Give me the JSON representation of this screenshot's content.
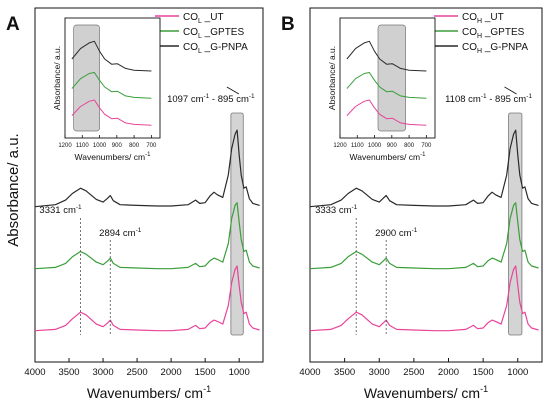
{
  "figure": {
    "ylabel_text": "Absorbance/ a.u."
  },
  "chart_data": [
    {
      "type": "line",
      "panel_label": "A",
      "xlabel": "Wavenumbers/ cm",
      "xlabel_sup": "-1",
      "ylabel": "Absorbance/ a.u.",
      "xlim": [
        4000,
        650
      ],
      "x_reversed": true,
      "y_ticks": "none",
      "xticks": [
        4000,
        3500,
        3000,
        2500,
        2000,
        1500,
        1000
      ],
      "xtick_labels": [
        "4000",
        "3500",
        "3000",
        "2500",
        "2000",
        "1500",
        "1000"
      ],
      "legend_position": "top-right",
      "series": [
        {
          "name_main": "CO",
          "name_sub": "L",
          "name_rest": " _UT",
          "color": "#e8449a",
          "offset": 0.0,
          "points": [
            [
              4000,
              0.02
            ],
            [
              3700,
              0.04
            ],
            [
              3550,
              0.1
            ],
            [
              3450,
              0.2
            ],
            [
              3331,
              0.3
            ],
            [
              3250,
              0.26
            ],
            [
              3100,
              0.12
            ],
            [
              3000,
              0.08
            ],
            [
              2930,
              0.14
            ],
            [
              2894,
              0.18
            ],
            [
              2850,
              0.1
            ],
            [
              2750,
              0.04
            ],
            [
              2500,
              0.03
            ],
            [
              2200,
              0.02
            ],
            [
              2000,
              0.02
            ],
            [
              1750,
              0.04
            ],
            [
              1640,
              0.1
            ],
            [
              1580,
              0.05
            ],
            [
              1500,
              0.06
            ],
            [
              1430,
              0.14
            ],
            [
              1370,
              0.18
            ],
            [
              1320,
              0.16
            ],
            [
              1240,
              0.12
            ],
            [
              1160,
              0.4
            ],
            [
              1110,
              0.75
            ],
            [
              1060,
              0.95
            ],
            [
              1030,
              1.0
            ],
            [
              1000,
              0.7
            ],
            [
              970,
              0.45
            ],
            [
              930,
              0.28
            ],
            [
              897,
              0.3
            ],
            [
              850,
              0.12
            ],
            [
              800,
              0.06
            ],
            [
              700,
              0.03
            ]
          ]
        },
        {
          "name_main": "CO",
          "name_sub": "L",
          "name_rest": " _GPTES",
          "color": "#3a9e3a",
          "offset": 0.32,
          "points": [
            [
              4000,
              0.02
            ],
            [
              3700,
              0.04
            ],
            [
              3550,
              0.1
            ],
            [
              3450,
              0.2
            ],
            [
              3331,
              0.28
            ],
            [
              3250,
              0.24
            ],
            [
              3100,
              0.12
            ],
            [
              3000,
              0.08
            ],
            [
              2930,
              0.14
            ],
            [
              2894,
              0.18
            ],
            [
              2850,
              0.1
            ],
            [
              2750,
              0.04
            ],
            [
              2500,
              0.03
            ],
            [
              2200,
              0.02
            ],
            [
              2000,
              0.02
            ],
            [
              1750,
              0.04
            ],
            [
              1640,
              0.1
            ],
            [
              1580,
              0.05
            ],
            [
              1500,
              0.06
            ],
            [
              1430,
              0.14
            ],
            [
              1370,
              0.18
            ],
            [
              1320,
              0.16
            ],
            [
              1240,
              0.12
            ],
            [
              1160,
              0.4
            ],
            [
              1110,
              0.78
            ],
            [
              1060,
              0.98
            ],
            [
              1030,
              1.02
            ],
            [
              1000,
              0.72
            ],
            [
              970,
              0.46
            ],
            [
              930,
              0.28
            ],
            [
              897,
              0.3
            ],
            [
              850,
              0.12
            ],
            [
              800,
              0.06
            ],
            [
              700,
              0.03
            ]
          ]
        },
        {
          "name_main": "CO",
          "name_sub": "L",
          "name_rest": " _G-PNPA",
          "color": "#2a2a2a",
          "offset": 0.66,
          "points": [
            [
              4000,
              0.02
            ],
            [
              3700,
              0.05
            ],
            [
              3550,
              0.12
            ],
            [
              3450,
              0.22
            ],
            [
              3331,
              0.3
            ],
            [
              3250,
              0.26
            ],
            [
              3100,
              0.13
            ],
            [
              3000,
              0.09
            ],
            [
              2930,
              0.15
            ],
            [
              2894,
              0.19
            ],
            [
              2850,
              0.11
            ],
            [
              2750,
              0.05
            ],
            [
              2500,
              0.04
            ],
            [
              2200,
              0.03
            ],
            [
              2000,
              0.03
            ],
            [
              1750,
              0.05
            ],
            [
              1640,
              0.12
            ],
            [
              1580,
              0.07
            ],
            [
              1500,
              0.08
            ],
            [
              1430,
              0.18
            ],
            [
              1370,
              0.24
            ],
            [
              1320,
              0.2
            ],
            [
              1240,
              0.16
            ],
            [
              1160,
              0.5
            ],
            [
              1110,
              0.9
            ],
            [
              1060,
              1.12
            ],
            [
              1030,
              1.18
            ],
            [
              1000,
              0.8
            ],
            [
              970,
              0.5
            ],
            [
              930,
              0.3
            ],
            [
              897,
              0.32
            ],
            [
              850,
              0.14
            ],
            [
              800,
              0.07
            ],
            [
              700,
              0.04
            ]
          ]
        }
      ],
      "annotations": [
        {
          "text": "3331 cm",
          "sup": "-1",
          "x": 3331
        },
        {
          "text": "2894 cm",
          "sup": "-1",
          "x": 2894
        },
        {
          "text": "1097 cm",
          "sup1": "-1",
          "text2": " - 895 cm",
          "sup2": "-1",
          "x_range": [
            1097,
            895
          ]
        }
      ],
      "inset": {
        "xlabel": "Wavenumbers/ cm",
        "xlabel_sup": "-1",
        "ylabel": "Absorbance/ a.u.",
        "xlim": [
          1200,
          650
        ],
        "xticks": [
          1200,
          1100,
          1000,
          900,
          800,
          700
        ],
        "xtick_labels": [
          "1200",
          "1100",
          "1000",
          "900",
          "800",
          "700"
        ],
        "highlight_range": [
          1150,
          1000
        ]
      }
    },
    {
      "type": "line",
      "panel_label": "B",
      "xlabel": "Wavenumbers/ cm",
      "xlabel_sup": "-1",
      "ylabel": "Absorbance/ a.u.",
      "xlim": [
        4000,
        650
      ],
      "x_reversed": true,
      "y_ticks": "none",
      "xticks": [
        4000,
        3500,
        3000,
        2500,
        2000,
        1500,
        1000
      ],
      "xtick_labels": [
        "4000",
        "3500",
        "3000",
        "2500",
        "2000",
        "1500",
        "1000"
      ],
      "legend_position": "top-right",
      "series": [
        {
          "name_main": "CO",
          "name_sub": "H",
          "name_rest": " _UT",
          "color": "#e8449a",
          "offset": 0.0,
          "points": [
            [
              4000,
              0.02
            ],
            [
              3700,
              0.04
            ],
            [
              3550,
              0.1
            ],
            [
              3450,
              0.2
            ],
            [
              3333,
              0.3
            ],
            [
              3250,
              0.26
            ],
            [
              3100,
              0.12
            ],
            [
              3000,
              0.08
            ],
            [
              2940,
              0.14
            ],
            [
              2900,
              0.18
            ],
            [
              2850,
              0.1
            ],
            [
              2750,
              0.04
            ],
            [
              2500,
              0.03
            ],
            [
              2200,
              0.02
            ],
            [
              2000,
              0.02
            ],
            [
              1750,
              0.04
            ],
            [
              1640,
              0.1
            ],
            [
              1580,
              0.05
            ],
            [
              1500,
              0.06
            ],
            [
              1430,
              0.14
            ],
            [
              1370,
              0.18
            ],
            [
              1320,
              0.16
            ],
            [
              1240,
              0.12
            ],
            [
              1160,
              0.4
            ],
            [
              1110,
              0.75
            ],
            [
              1060,
              0.95
            ],
            [
              1030,
              1.0
            ],
            [
              1000,
              0.7
            ],
            [
              970,
              0.45
            ],
            [
              930,
              0.28
            ],
            [
              897,
              0.3
            ],
            [
              850,
              0.12
            ],
            [
              800,
              0.06
            ],
            [
              700,
              0.03
            ]
          ]
        },
        {
          "name_main": "CO",
          "name_sub": "H",
          "name_rest": " _GPTES",
          "color": "#3a9e3a",
          "offset": 0.32,
          "points": [
            [
              4000,
              0.02
            ],
            [
              3700,
              0.04
            ],
            [
              3550,
              0.1
            ],
            [
              3450,
              0.2
            ],
            [
              3333,
              0.28
            ],
            [
              3250,
              0.24
            ],
            [
              3100,
              0.12
            ],
            [
              3000,
              0.08
            ],
            [
              2940,
              0.14
            ],
            [
              2900,
              0.18
            ],
            [
              2850,
              0.1
            ],
            [
              2750,
              0.04
            ],
            [
              2500,
              0.03
            ],
            [
              2200,
              0.02
            ],
            [
              2000,
              0.02
            ],
            [
              1750,
              0.04
            ],
            [
              1640,
              0.1
            ],
            [
              1580,
              0.05
            ],
            [
              1500,
              0.06
            ],
            [
              1430,
              0.14
            ],
            [
              1370,
              0.18
            ],
            [
              1320,
              0.16
            ],
            [
              1240,
              0.12
            ],
            [
              1160,
              0.4
            ],
            [
              1110,
              0.78
            ],
            [
              1060,
              0.98
            ],
            [
              1030,
              1.02
            ],
            [
              1000,
              0.72
            ],
            [
              970,
              0.46
            ],
            [
              930,
              0.28
            ],
            [
              897,
              0.3
            ],
            [
              850,
              0.12
            ],
            [
              800,
              0.06
            ],
            [
              700,
              0.03
            ]
          ]
        },
        {
          "name_main": "CO",
          "name_sub": "H",
          "name_rest": " _G-PNPA",
          "color": "#2a2a2a",
          "offset": 0.66,
          "points": [
            [
              4000,
              0.02
            ],
            [
              3700,
              0.05
            ],
            [
              3550,
              0.12
            ],
            [
              3450,
              0.22
            ],
            [
              3333,
              0.3
            ],
            [
              3250,
              0.26
            ],
            [
              3100,
              0.13
            ],
            [
              3000,
              0.09
            ],
            [
              2940,
              0.15
            ],
            [
              2900,
              0.19
            ],
            [
              2850,
              0.11
            ],
            [
              2750,
              0.05
            ],
            [
              2500,
              0.04
            ],
            [
              2200,
              0.03
            ],
            [
              2000,
              0.03
            ],
            [
              1750,
              0.05
            ],
            [
              1640,
              0.12
            ],
            [
              1580,
              0.07
            ],
            [
              1500,
              0.08
            ],
            [
              1430,
              0.18
            ],
            [
              1370,
              0.24
            ],
            [
              1320,
              0.2
            ],
            [
              1240,
              0.16
            ],
            [
              1160,
              0.5
            ],
            [
              1110,
              0.9
            ],
            [
              1060,
              1.12
            ],
            [
              1030,
              1.18
            ],
            [
              1000,
              0.8
            ],
            [
              970,
              0.5
            ],
            [
              930,
              0.3
            ],
            [
              897,
              0.32
            ],
            [
              850,
              0.14
            ],
            [
              800,
              0.07
            ],
            [
              700,
              0.04
            ]
          ]
        }
      ],
      "annotations": [
        {
          "text": "3333 cm",
          "sup": "-1",
          "x": 3333
        },
        {
          "text": "2900 cm",
          "sup": "-1",
          "x": 2900
        },
        {
          "text": "1108 cm",
          "sup1": "-1",
          "text2": " - 895 cm",
          "sup2": "-1",
          "x_range": [
            1108,
            895
          ]
        }
      ],
      "inset": {
        "xlabel": "Wavenumbers/ cm",
        "xlabel_sup": "-1",
        "ylabel": "Absorbance/ a.u.",
        "xlim": [
          1200,
          650
        ],
        "xticks": [
          1200,
          1100,
          1000,
          900,
          800,
          700
        ],
        "xtick_labels": [
          "1200",
          "1100",
          "1000",
          "900",
          "800",
          "700"
        ],
        "highlight_range": [
          980,
          820
        ]
      }
    }
  ]
}
